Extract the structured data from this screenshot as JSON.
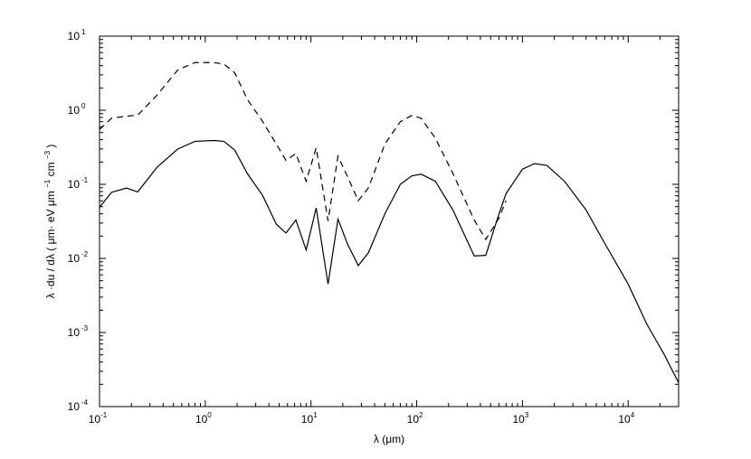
{
  "chart_data": {
    "type": "line",
    "title": "",
    "xlabel": "λ (μm)",
    "ylabel_main": "λ ·du / dλ ( μm· eV μm",
    "ylabel_sup1": "−1",
    "ylabel_mid": " cm",
    "ylabel_sup2": "−3",
    "ylabel_end": ")",
    "xscale": "log",
    "yscale": "log",
    "xlim": [
      0.1,
      30000
    ],
    "ylim": [
      0.0001,
      10
    ],
    "grid": false,
    "legend": "none",
    "x_ticks": [
      {
        "value": 0.1,
        "base": "10",
        "exp": "-1"
      },
      {
        "value": 1,
        "base": "10",
        "exp": "0"
      },
      {
        "value": 10,
        "base": "10",
        "exp": "1"
      },
      {
        "value": 100,
        "base": "10",
        "exp": "2"
      },
      {
        "value": 1000,
        "base": "10",
        "exp": "3"
      },
      {
        "value": 10000,
        "base": "10",
        "exp": "4"
      }
    ],
    "y_ticks": [
      {
        "value": 0.0001,
        "base": "10",
        "exp": "-4"
      },
      {
        "value": 0.001,
        "base": "10",
        "exp": "-3"
      },
      {
        "value": 0.01,
        "base": "10",
        "exp": "-2"
      },
      {
        "value": 0.1,
        "base": "10",
        "exp": "-1"
      },
      {
        "value": 1,
        "base": "10",
        "exp": "0"
      },
      {
        "value": 10,
        "base": "10",
        "exp": "1"
      }
    ],
    "series": [
      {
        "style": "solid",
        "points": [
          [
            0.1,
            0.049
          ],
          [
            0.13,
            0.078
          ],
          [
            0.18,
            0.089
          ],
          [
            0.23,
            0.079
          ],
          [
            0.35,
            0.17
          ],
          [
            0.55,
            0.3
          ],
          [
            0.8,
            0.38
          ],
          [
            1.2,
            0.39
          ],
          [
            1.5,
            0.38
          ],
          [
            1.9,
            0.29
          ],
          [
            2.5,
            0.14
          ],
          [
            3.5,
            0.07
          ],
          [
            4.7,
            0.029
          ],
          [
            5.8,
            0.022
          ],
          [
            7.2,
            0.033
          ],
          [
            9.0,
            0.013
          ],
          [
            11.2,
            0.048
          ],
          [
            14.5,
            0.0045
          ],
          [
            18.0,
            0.034
          ],
          [
            22.0,
            0.016
          ],
          [
            28.0,
            0.008
          ],
          [
            35.0,
            0.012
          ],
          [
            50.0,
            0.04
          ],
          [
            70.0,
            0.1
          ],
          [
            90.0,
            0.13
          ],
          [
            110.0,
            0.137
          ],
          [
            150.0,
            0.11
          ],
          [
            220.0,
            0.045
          ],
          [
            350.0,
            0.0108
          ],
          [
            450.0,
            0.011
          ],
          [
            600.0,
            0.04
          ],
          [
            700.0,
            0.075
          ],
          [
            1000.0,
            0.16
          ],
          [
            1300.0,
            0.19
          ],
          [
            1700.0,
            0.18
          ],
          [
            2500.0,
            0.11
          ],
          [
            4000.0,
            0.045
          ],
          [
            6000.0,
            0.016
          ],
          [
            10000.0,
            0.0045
          ],
          [
            15000.0,
            0.0013
          ],
          [
            22000.0,
            0.0005
          ],
          [
            30000.0,
            0.00021
          ]
        ]
      },
      {
        "style": "dashed",
        "points": [
          [
            0.1,
            0.55
          ],
          [
            0.13,
            0.78
          ],
          [
            0.18,
            0.83
          ],
          [
            0.23,
            0.86
          ],
          [
            0.35,
            1.6
          ],
          [
            0.55,
            3.5
          ],
          [
            0.8,
            4.4
          ],
          [
            1.2,
            4.4
          ],
          [
            1.5,
            4.2
          ],
          [
            1.9,
            3.2
          ],
          [
            2.5,
            1.4
          ],
          [
            3.5,
            0.7
          ],
          [
            4.7,
            0.35
          ],
          [
            5.8,
            0.21
          ],
          [
            7.2,
            0.26
          ],
          [
            9.0,
            0.11
          ],
          [
            11.2,
            0.31
          ],
          [
            14.5,
            0.032
          ],
          [
            18.0,
            0.24
          ],
          [
            22.0,
            0.13
          ],
          [
            28.0,
            0.06
          ],
          [
            35.0,
            0.09
          ],
          [
            50.0,
            0.35
          ],
          [
            70.0,
            0.7
          ],
          [
            90.0,
            0.85
          ],
          [
            110.0,
            0.78
          ],
          [
            150.0,
            0.42
          ],
          [
            220.0,
            0.14
          ],
          [
            350.0,
            0.033
          ],
          [
            450.0,
            0.018
          ],
          [
            600.0,
            0.035
          ],
          [
            700.0,
            0.06
          ]
        ]
      }
    ]
  }
}
